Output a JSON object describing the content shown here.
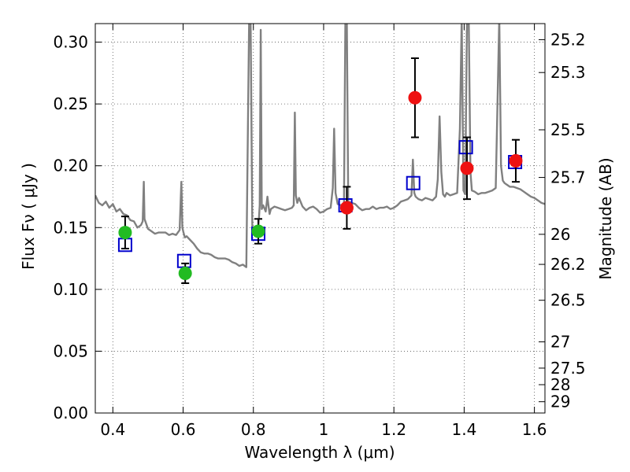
{
  "chart_data": {
    "type": "scatter",
    "xlabel": "Wavelength  λ (μm)",
    "ylabel": "Flux  Fν  ( μJy )",
    "ylabel_right": "Magnitude (AB)",
    "xlim": [
      0.35,
      1.63
    ],
    "ylim": [
      0.0,
      0.315
    ],
    "grid": true,
    "x_ticks": [
      0.4,
      0.6,
      0.8,
      1.0,
      1.2,
      1.4,
      1.6
    ],
    "x_tick_labels": [
      "0.4",
      "0.6",
      "0.8",
      "1",
      "1.2",
      "1.4",
      "1.6"
    ],
    "y_ticks": [
      0.0,
      0.05,
      0.1,
      0.15,
      0.2,
      0.25,
      0.3
    ],
    "y_tick_labels": [
      "0.00",
      "0.05",
      "0.10",
      "0.15",
      "0.20",
      "0.25",
      "0.30"
    ],
    "mag_ticks": [
      25.2,
      25.3,
      25.5,
      25.7,
      26,
      26.2,
      26.5,
      27,
      27.5,
      28,
      29
    ],
    "mag_tick_labels": [
      "25.2",
      "25.3",
      "25.5",
      "25.7",
      "26",
      "26.2",
      "26.5",
      "27",
      "27.5",
      "28",
      "29"
    ],
    "series": [
      {
        "marker": "square",
        "color": "#0000cc",
        "x": [
          0.435,
          0.603,
          0.814,
          1.062,
          1.255,
          1.405,
          1.545
        ],
        "y": [
          0.136,
          0.123,
          0.145,
          0.168,
          0.186,
          0.215,
          0.203
        ]
      },
      {
        "marker": "circle",
        "color": "#22bb22",
        "x": [
          0.435,
          0.606,
          0.814
        ],
        "y": [
          0.146,
          0.113,
          0.147
        ],
        "yerr": [
          0.013,
          0.008,
          0.01
        ]
      },
      {
        "marker": "circle",
        "color": "#ee1111",
        "x": [
          1.066,
          1.26,
          1.408,
          1.547
        ],
        "y": [
          0.166,
          0.255,
          0.198,
          0.204
        ],
        "yerr": [
          0.017,
          0.032,
          0.025,
          0.017
        ]
      },
      {
        "kind": "spectrum",
        "color": "#808080",
        "x": [
          0.35,
          0.36,
          0.37,
          0.38,
          0.39,
          0.4,
          0.41,
          0.42,
          0.43,
          0.44,
          0.45,
          0.46,
          0.47,
          0.48,
          0.485,
          0.488,
          0.49,
          0.5,
          0.51,
          0.52,
          0.53,
          0.54,
          0.55,
          0.56,
          0.57,
          0.58,
          0.59,
          0.595,
          0.598,
          0.601,
          0.605,
          0.61,
          0.62,
          0.63,
          0.64,
          0.65,
          0.66,
          0.67,
          0.68,
          0.69,
          0.7,
          0.71,
          0.72,
          0.73,
          0.74,
          0.75,
          0.76,
          0.77,
          0.78,
          0.788,
          0.792,
          0.797,
          0.801,
          0.806,
          0.81,
          0.815,
          0.818,
          0.821,
          0.824,
          0.828,
          0.835,
          0.84,
          0.843,
          0.846,
          0.85,
          0.86,
          0.87,
          0.88,
          0.89,
          0.9,
          0.91,
          0.915,
          0.918,
          0.921,
          0.925,
          0.93,
          0.94,
          0.95,
          0.96,
          0.97,
          0.98,
          0.99,
          1.0,
          1.01,
          1.02,
          1.026,
          1.03,
          1.034,
          1.04,
          1.05,
          1.058,
          1.062,
          1.066,
          1.07,
          1.08,
          1.09,
          1.1,
          1.11,
          1.12,
          1.13,
          1.14,
          1.15,
          1.16,
          1.17,
          1.18,
          1.19,
          1.2,
          1.21,
          1.22,
          1.23,
          1.24,
          1.25,
          1.254,
          1.258,
          1.262,
          1.27,
          1.28,
          1.29,
          1.3,
          1.31,
          1.32,
          1.325,
          1.33,
          1.335,
          1.34,
          1.345,
          1.35,
          1.36,
          1.37,
          1.38,
          1.388,
          1.393,
          1.398,
          1.403,
          1.408,
          1.413,
          1.418,
          1.422,
          1.43,
          1.44,
          1.45,
          1.46,
          1.47,
          1.48,
          1.49,
          1.5,
          1.505,
          1.51,
          1.515,
          1.52,
          1.53,
          1.54,
          1.55,
          1.56,
          1.57,
          1.58,
          1.59,
          1.6,
          1.61,
          1.62,
          1.63
        ],
        "y": [
          0.176,
          0.17,
          0.168,
          0.171,
          0.166,
          0.169,
          0.163,
          0.165,
          0.161,
          0.16,
          0.156,
          0.155,
          0.15,
          0.152,
          0.155,
          0.187,
          0.157,
          0.149,
          0.147,
          0.145,
          0.146,
          0.146,
          0.146,
          0.144,
          0.145,
          0.144,
          0.148,
          0.187,
          0.15,
          0.146,
          0.142,
          0.143,
          0.14,
          0.137,
          0.133,
          0.13,
          0.129,
          0.129,
          0.128,
          0.126,
          0.125,
          0.125,
          0.125,
          0.124,
          0.122,
          0.121,
          0.119,
          0.12,
          0.118,
          0.32,
          0.32,
          0.15,
          0.149,
          0.15,
          0.148,
          0.153,
          0.168,
          0.31,
          0.165,
          0.168,
          0.163,
          0.175,
          0.168,
          0.161,
          0.165,
          0.167,
          0.166,
          0.165,
          0.164,
          0.165,
          0.166,
          0.168,
          0.243,
          0.176,
          0.17,
          0.174,
          0.167,
          0.164,
          0.166,
          0.167,
          0.165,
          0.162,
          0.163,
          0.165,
          0.166,
          0.182,
          0.23,
          0.178,
          0.169,
          0.168,
          0.17,
          0.32,
          0.32,
          0.171,
          0.17,
          0.169,
          0.166,
          0.164,
          0.165,
          0.165,
          0.167,
          0.165,
          0.166,
          0.166,
          0.167,
          0.165,
          0.166,
          0.168,
          0.171,
          0.172,
          0.173,
          0.176,
          0.205,
          0.178,
          0.175,
          0.173,
          0.172,
          0.174,
          0.173,
          0.172,
          0.175,
          0.189,
          0.24,
          0.195,
          0.177,
          0.175,
          0.178,
          0.176,
          0.177,
          0.178,
          0.23,
          0.32,
          0.18,
          0.177,
          0.32,
          0.32,
          0.195,
          0.18,
          0.179,
          0.177,
          0.178,
          0.178,
          0.179,
          0.18,
          0.182,
          0.32,
          0.2,
          0.188,
          0.186,
          0.185,
          0.183,
          0.183,
          0.182,
          0.181,
          0.179,
          0.177,
          0.175,
          0.174,
          0.172,
          0.17,
          0.169
        ]
      }
    ]
  }
}
